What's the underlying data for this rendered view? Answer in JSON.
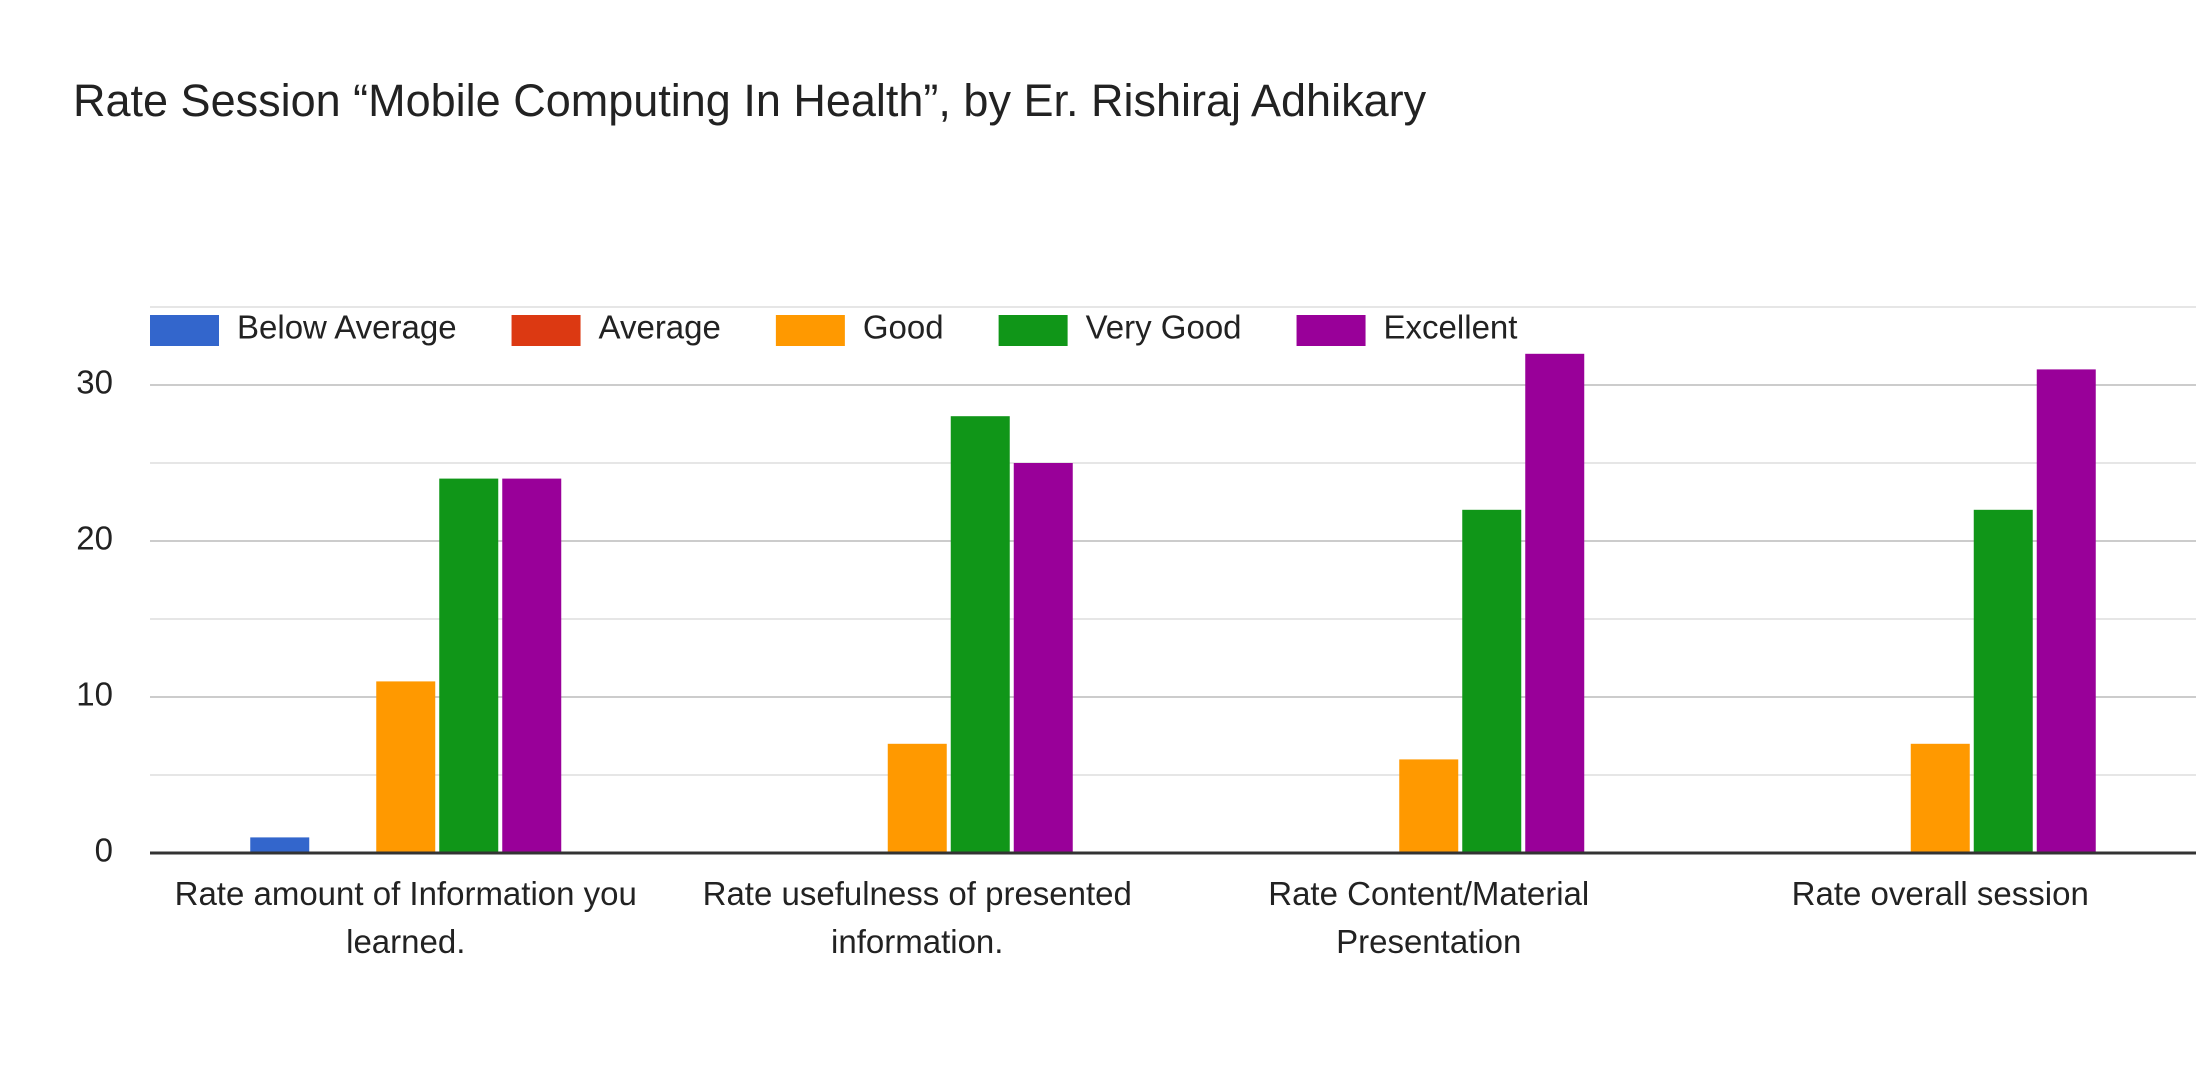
{
  "chart_data": {
    "type": "bar",
    "title": "Rate Session “Mobile Computing In Health”, by Er. Rishiraj Adhikary",
    "categories": [
      "Rate amount of Information you learned.",
      "Rate usefulness of presented information.",
      "Rate Content/Material Presentation",
      "Rate overall session"
    ],
    "series": [
      {
        "name": "Below Average",
        "color": "#3366cc",
        "values": [
          1,
          0,
          0,
          0
        ]
      },
      {
        "name": "Average",
        "color": "#dc3912",
        "values": [
          0,
          0,
          0,
          0
        ]
      },
      {
        "name": "Good",
        "color": "#ff9900",
        "values": [
          11,
          7,
          6,
          7
        ]
      },
      {
        "name": "Very Good",
        "color": "#109618",
        "values": [
          24,
          28,
          22,
          22
        ]
      },
      {
        "name": "Excellent",
        "color": "#990099",
        "values": [
          24,
          25,
          32,
          31
        ]
      }
    ],
    "ylim": [
      0,
      35
    ],
    "yticks": [
      0,
      10,
      20,
      30
    ],
    "minor_gridlines": [
      5,
      15,
      25,
      35
    ],
    "grid": true,
    "legend": "top"
  }
}
